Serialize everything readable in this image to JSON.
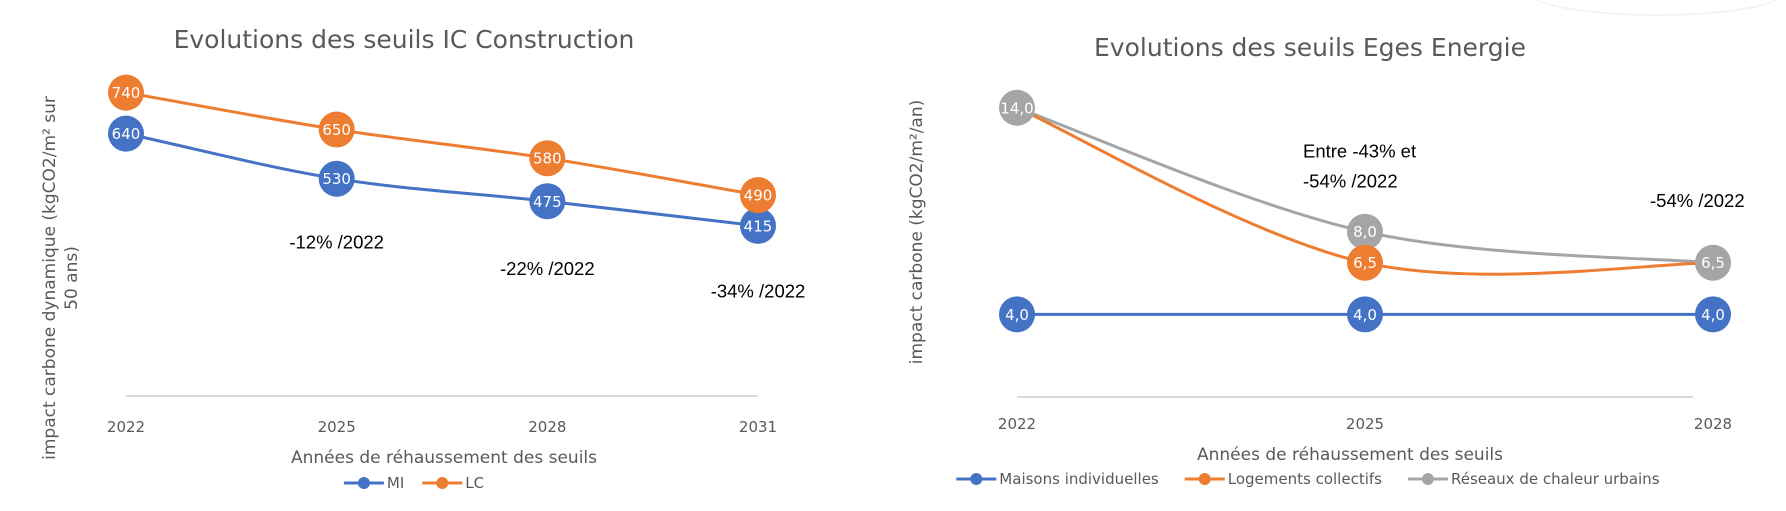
{
  "chart_data": [
    {
      "type": "line",
      "title": "Evolutions des seuils IC Construction",
      "xlabel": "Années de réhaussement des seuils",
      "ylabel": "impact carbone dynamique  (kgCO2/m² sur 50 ans)",
      "ylabel_lines": [
        "impact carbone dynamique  (kgCO2/m² sur",
        "50 ans)"
      ],
      "categories": [
        "2022",
        "2025",
        "2028",
        "2031"
      ],
      "ylim": [
        0,
        800
      ],
      "grid": false,
      "legend_position": "bottom",
      "series": [
        {
          "name": "MI",
          "color": "#4472c4",
          "values": [
            640,
            530,
            475,
            415
          ],
          "labels": [
            "640",
            "530",
            "475",
            "415"
          ]
        },
        {
          "name": "LC",
          "color": "#ed7d31",
          "values": [
            740,
            650,
            580,
            490
          ],
          "labels": [
            "740",
            "650",
            "580",
            "490"
          ]
        }
      ],
      "annotations": [
        {
          "text": [
            "-12% /2022"
          ],
          "category": "2025",
          "value": 360
        },
        {
          "text": [
            "-22% /2022"
          ],
          "category": "2028",
          "value": 295
        },
        {
          "text": [
            "-34% /2022"
          ],
          "category": "2031",
          "value": 240
        }
      ]
    },
    {
      "type": "line",
      "title": "Evolutions des seuils Eges Energie",
      "xlabel": "Années de réhaussement des seuils",
      "ylabel": "impact carbone  (kgCO2/m²/an)",
      "ylabel_lines": [
        "impact carbone  (kgCO2/m²/an)"
      ],
      "categories": [
        "2022",
        "2025",
        "2028"
      ],
      "ylim": [
        0,
        16.7
      ],
      "grid": false,
      "legend_position": "bottom",
      "smooth": true,
      "series": [
        {
          "name": "Maisons individuelles",
          "color": "#4472c4",
          "values": [
            4.0,
            4.0,
            4.0
          ],
          "labels": [
            "4,0",
            "4,0",
            "4,0"
          ],
          "show_markers": [
            true,
            true,
            true
          ]
        },
        {
          "name": "Logements collectifs",
          "color": "#ed7d31",
          "values": [
            14.0,
            6.5,
            6.5
          ],
          "labels": [
            "",
            "6,5",
            ""
          ],
          "show_markers": [
            false,
            true,
            false
          ]
        },
        {
          "name": "Réseaux de chaleur urbains",
          "color": "#a5a5a5",
          "values": [
            14.0,
            8.0,
            6.5
          ],
          "labels": [
            "14,0",
            "8,0",
            "6,5"
          ],
          "show_markers": [
            true,
            true,
            true
          ]
        }
      ],
      "annotations": [
        {
          "text": [
            "Entre -43% et",
            "-54% /2022"
          ],
          "category": "2025",
          "value": 11.6
        },
        {
          "text": [
            "-54% /2022"
          ],
          "category": "2028",
          "value": 9.2
        }
      ]
    }
  ]
}
